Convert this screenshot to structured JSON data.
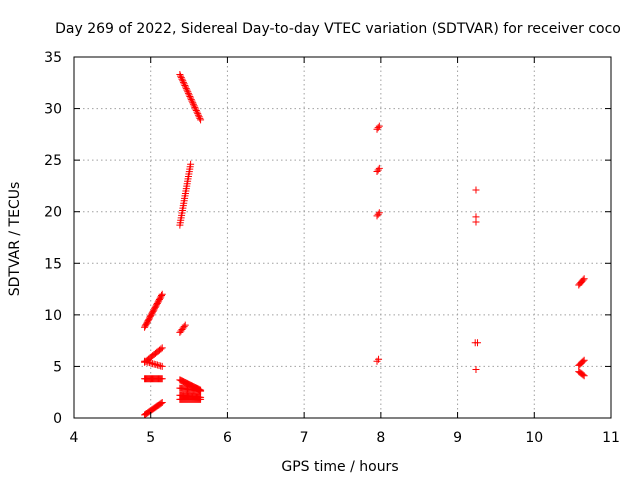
{
  "chart_data": {
    "type": "scatter",
    "title": "Day 269 of 2022, Sidereal Day-to-day VTEC variation (SDTVAR) for receiver coco",
    "xlabel": "GPS time / hours",
    "ylabel": "SDTVAR / TECUs",
    "xlim": [
      4,
      11
    ],
    "ylim": [
      0,
      35
    ],
    "xticks": [
      "4",
      "5",
      "6",
      "7",
      "8",
      "9",
      "10",
      "11"
    ],
    "yticks": [
      "0",
      "5",
      "10",
      "15",
      "20",
      "25",
      "30",
      "35"
    ],
    "grid": true,
    "marker": "plus",
    "colors": {
      "points": "#ff0000",
      "grid": "#a0a0a0",
      "axis": "#000000"
    },
    "segments": [
      {
        "x0": 5.38,
        "y0": 33.3,
        "x1": 5.65,
        "y1": 28.9,
        "n": 30
      },
      {
        "x0": 5.38,
        "y0": 18.7,
        "x1": 5.52,
        "y1": 24.6,
        "n": 26
      },
      {
        "x0": 4.92,
        "y0": 8.8,
        "x1": 5.15,
        "y1": 12.0,
        "n": 26
      },
      {
        "x0": 5.38,
        "y0": 8.3,
        "x1": 5.45,
        "y1": 9.0,
        "n": 6
      },
      {
        "x0": 4.92,
        "y0": 5.4,
        "x1": 5.15,
        "y1": 6.8,
        "n": 14
      },
      {
        "x0": 4.92,
        "y0": 5.5,
        "x1": 5.15,
        "y1": 5.0,
        "n": 12
      },
      {
        "x0": 4.92,
        "y0": 3.8,
        "x1": 5.15,
        "y1": 3.8,
        "n": 20
      },
      {
        "x0": 5.38,
        "y0": 3.7,
        "x1": 5.65,
        "y1": 2.7,
        "n": 24
      },
      {
        "x0": 5.38,
        "y0": 2.9,
        "x1": 5.65,
        "y1": 2.6,
        "n": 20
      },
      {
        "x0": 5.38,
        "y0": 2.2,
        "x1": 5.65,
        "y1": 2.0,
        "n": 24
      },
      {
        "x0": 5.38,
        "y0": 1.8,
        "x1": 5.65,
        "y1": 1.8,
        "n": 22
      },
      {
        "x0": 4.92,
        "y0": 0.3,
        "x1": 5.15,
        "y1": 1.5,
        "n": 18
      },
      {
        "x0": 7.95,
        "y0": 28.0,
        "x1": 7.98,
        "y1": 28.3,
        "n": 3
      },
      {
        "x0": 7.95,
        "y0": 23.9,
        "x1": 7.98,
        "y1": 24.2,
        "n": 3
      },
      {
        "x0": 7.95,
        "y0": 19.6,
        "x1": 7.98,
        "y1": 19.9,
        "n": 3
      },
      {
        "x0": 7.95,
        "y0": 5.5,
        "x1": 7.97,
        "y1": 5.7,
        "n": 2
      },
      {
        "x0": 9.24,
        "y0": 22.1,
        "x1": 9.24,
        "y1": 22.1,
        "n": 1
      },
      {
        "x0": 9.24,
        "y0": 19.0,
        "x1": 9.24,
        "y1": 19.5,
        "n": 2
      },
      {
        "x0": 9.23,
        "y0": 7.3,
        "x1": 9.26,
        "y1": 7.3,
        "n": 2
      },
      {
        "x0": 9.24,
        "y0": 4.7,
        "x1": 9.24,
        "y1": 4.7,
        "n": 1
      },
      {
        "x0": 10.58,
        "y0": 12.9,
        "x1": 10.65,
        "y1": 13.5,
        "n": 6
      },
      {
        "x0": 10.58,
        "y0": 5.1,
        "x1": 10.65,
        "y1": 5.6,
        "n": 6
      },
      {
        "x0": 10.58,
        "y0": 4.5,
        "x1": 10.65,
        "y1": 4.1,
        "n": 6
      }
    ]
  }
}
